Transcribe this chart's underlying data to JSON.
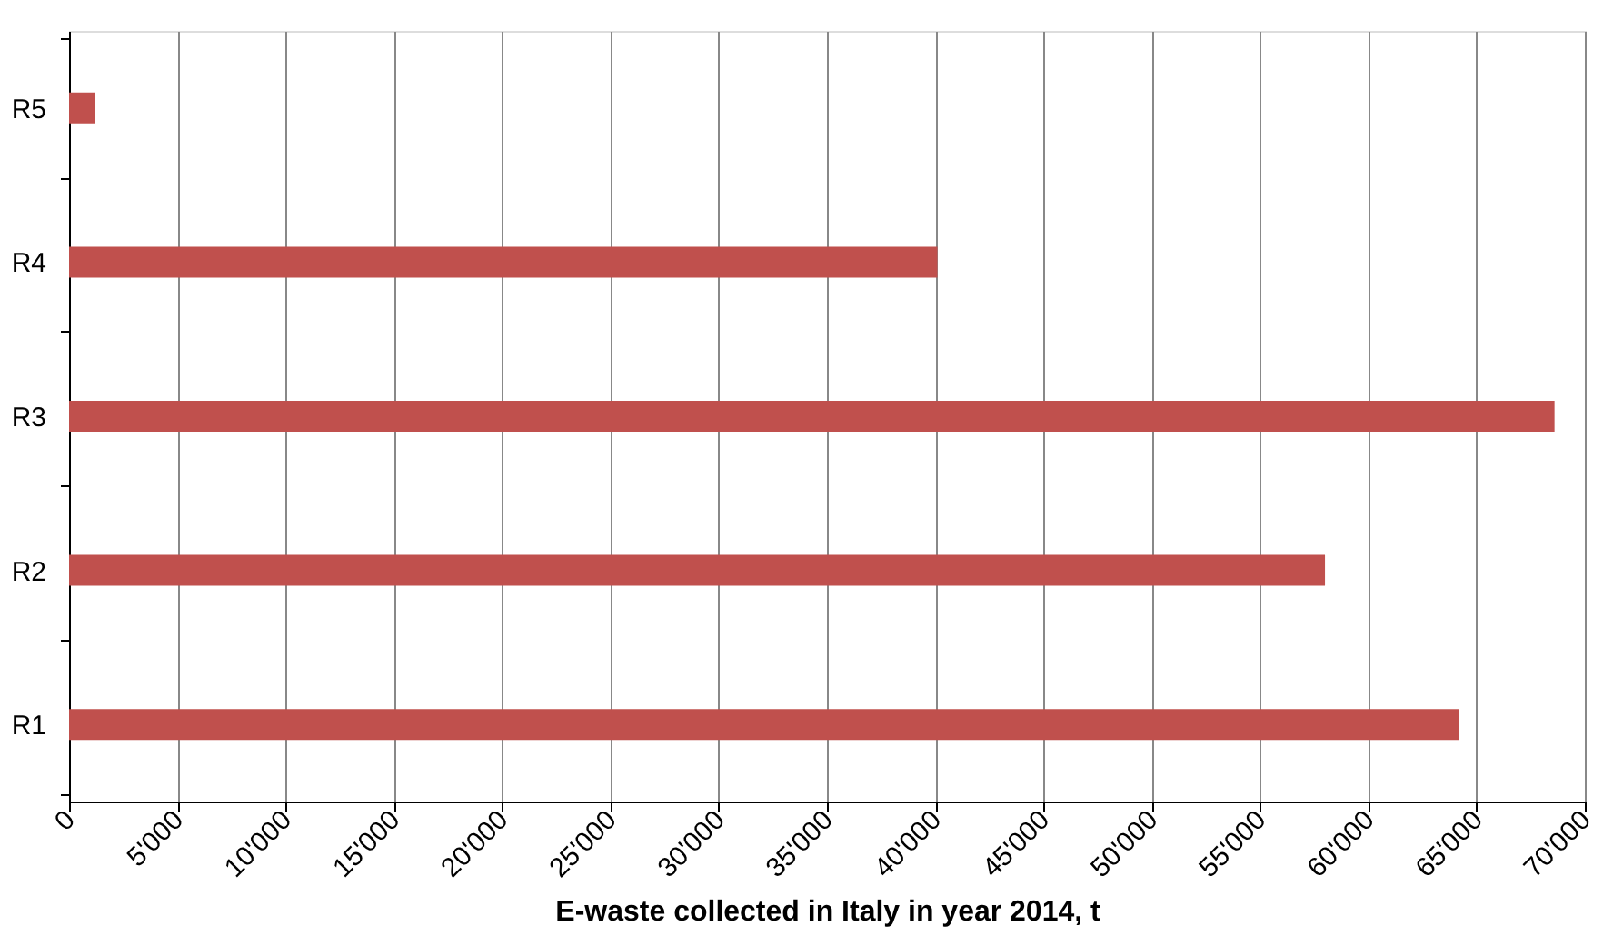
{
  "chart_data": {
    "type": "bar",
    "orientation": "horizontal",
    "xlabel": "E-waste collected in Italy in year 2014, t",
    "categories": [
      "R5",
      "R4",
      "R3",
      "R2",
      "R1"
    ],
    "values": [
      1200,
      40100,
      68600,
      58000,
      64200
    ],
    "color": "#c0504d",
    "xlim": [
      0,
      70000
    ],
    "xticks": [
      0,
      {
        "value": 5000,
        "label": "5'000"
      },
      {
        "value": 10000,
        "label": "10'000"
      },
      {
        "value": 15000,
        "label": "15'000"
      },
      {
        "value": 20000,
        "label": "20'000"
      },
      {
        "value": 25000,
        "label": "25'000"
      },
      {
        "value": 30000,
        "label": "30'000"
      },
      {
        "value": 35000,
        "label": "35'000"
      },
      {
        "value": 40000,
        "label": "40'000"
      },
      {
        "value": 45000,
        "label": "45'000"
      },
      {
        "value": 50000,
        "label": "50'000"
      },
      {
        "value": 55000,
        "label": "55'000"
      },
      {
        "value": 60000,
        "label": "60'000"
      },
      {
        "value": 65000,
        "label": "65'000"
      },
      {
        "value": 70000,
        "label": "70'000"
      }
    ],
    "grid": "x"
  }
}
